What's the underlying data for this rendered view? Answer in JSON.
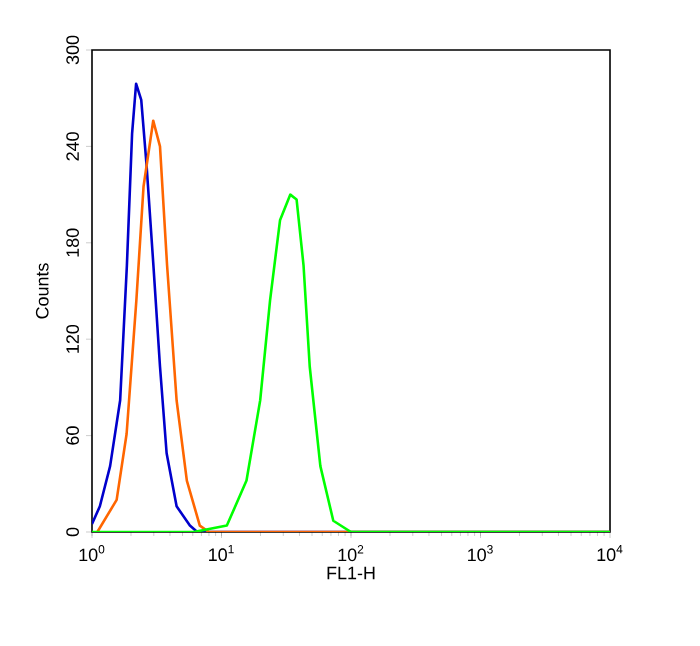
{
  "chart_data": {
    "type": "line",
    "xlabel": "FL1-H",
    "ylabel": "Counts",
    "log": "x",
    "grid": false,
    "marker": "none",
    "line_style": "solid",
    "xlim": [
      1,
      10000
    ],
    "ylim": [
      0,
      300
    ],
    "xticks": [
      {
        "value": 1,
        "label": "10$^{0}$"
      },
      {
        "value": 10,
        "label": "10$^{1}$"
      },
      {
        "value": 100,
        "label": "10$^{2}$"
      },
      {
        "value": 1000,
        "label": "10$^{3}$"
      },
      {
        "value": 10000,
        "label": "10$^{4}$"
      }
    ],
    "yticks": [
      0,
      60,
      120,
      180,
      240,
      300
    ],
    "series": [
      {
        "color": "#0000cc",
        "x": [
          1,
          1.15,
          1.38,
          1.65,
          1.86,
          2.04,
          2.19,
          2.4,
          2.64,
          2.98,
          3.35,
          3.77,
          4.5,
          5.7,
          6.5,
          10000
        ],
        "values": [
          5,
          16,
          41,
          82,
          166,
          248,
          279,
          269,
          228,
          166,
          103,
          49,
          16,
          4,
          0,
          0
        ]
      },
      {
        "color": "#ff6600",
        "x": [
          1.1,
          1.55,
          1.85,
          2.2,
          2.5,
          2.97,
          3.35,
          3.8,
          4.5,
          5.4,
          6.8,
          8,
          10000
        ],
        "values": [
          0,
          20,
          61,
          144,
          215,
          256,
          240,
          166,
          82,
          32,
          4,
          0,
          0
        ]
      },
      {
        "color": "#00ff00",
        "x": [
          1,
          6.1,
          11,
          15.6,
          19.9,
          23.7,
          28.3,
          34,
          38,
          43,
          48,
          58,
          73,
          100,
          10000
        ],
        "values": [
          0,
          0,
          4,
          32,
          82,
          144,
          194,
          210,
          207,
          166,
          103,
          41,
          7,
          0,
          0
        ]
      }
    ]
  }
}
